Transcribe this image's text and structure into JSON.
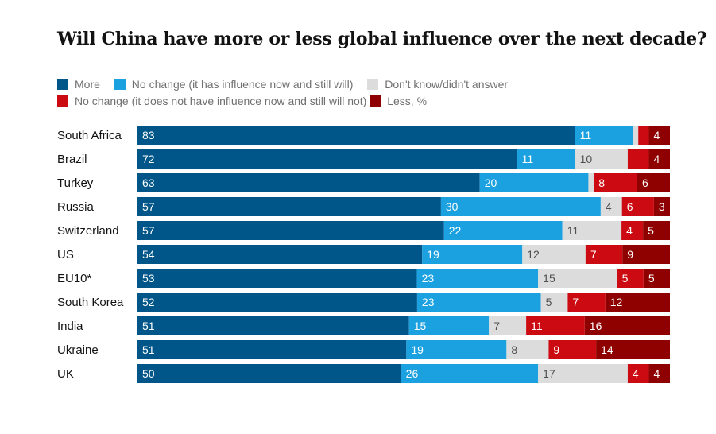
{
  "chart_data": {
    "type": "bar",
    "stacked": true,
    "orientation": "horizontal",
    "title": "Will China have more or less global influence over the next decade?",
    "categories": [
      "South Africa",
      "Brazil",
      "Turkey",
      "Russia",
      "Switzerland",
      "US",
      "EU10*",
      "South Korea",
      "India",
      "Ukraine",
      "UK"
    ],
    "series": [
      {
        "name": "More",
        "color": "#005689",
        "label_color": "#ffffff",
        "values": [
          83,
          72,
          63,
          57,
          57,
          54,
          53,
          52,
          51,
          51,
          50
        ]
      },
      {
        "name": "No change (it has influence now and still will)",
        "color": "#1ba0e0",
        "label_color": "#ffffff",
        "values": [
          11,
          11,
          20,
          30,
          22,
          19,
          23,
          23,
          15,
          19,
          26
        ]
      },
      {
        "name": "Don't know/didn't answer",
        "color": "#dcdcdc",
        "label_color": "#505050",
        "values": [
          1,
          10,
          1,
          4,
          11,
          12,
          15,
          5,
          7,
          8,
          17
        ]
      },
      {
        "name": "No change (it does not have influence now and still will not)",
        "color": "#cc0a11",
        "label_color": "#ffffff",
        "values": [
          2,
          4,
          8,
          6,
          4,
          7,
          5,
          7,
          11,
          9,
          4
        ]
      },
      {
        "name": "Less, %",
        "color": "#8f0000",
        "label_color": "#ffffff",
        "values": [
          4,
          4,
          6,
          3,
          5,
          9,
          5,
          12,
          16,
          14,
          4
        ]
      }
    ],
    "data_labels": [
      [
        "83",
        "11",
        "",
        "",
        "4"
      ],
      [
        "72",
        "11",
        "10",
        "",
        "4"
      ],
      [
        "63",
        "20",
        "",
        "8",
        "6"
      ],
      [
        "57",
        "30",
        "4",
        "6",
        "3"
      ],
      [
        "57",
        "22",
        "11",
        "4",
        "5"
      ],
      [
        "54",
        "19",
        "12",
        "7",
        "9"
      ],
      [
        "53",
        "23",
        "15",
        "5",
        "5"
      ],
      [
        "52",
        "23",
        "5",
        "7",
        "12"
      ],
      [
        "51",
        "15",
        "7",
        "11",
        "16"
      ],
      [
        "51",
        "19",
        "8",
        "9",
        "14"
      ],
      [
        "50",
        "26",
        "17",
        "4",
        "4"
      ]
    ],
    "xlim": [
      0,
      100
    ],
    "legend_position": "top"
  },
  "legend": [
    {
      "label": "More",
      "color": "#005689"
    },
    {
      "label": "No change (it has influence now and still will)",
      "color": "#1ba0e0"
    },
    {
      "label": "Don't know/didn't answer",
      "color": "#dcdcdc"
    },
    {
      "label": "No change (it does not have influence now and still will not)",
      "color": "#cc0a11"
    },
    {
      "label": "Less, %",
      "color": "#8f0000"
    }
  ]
}
